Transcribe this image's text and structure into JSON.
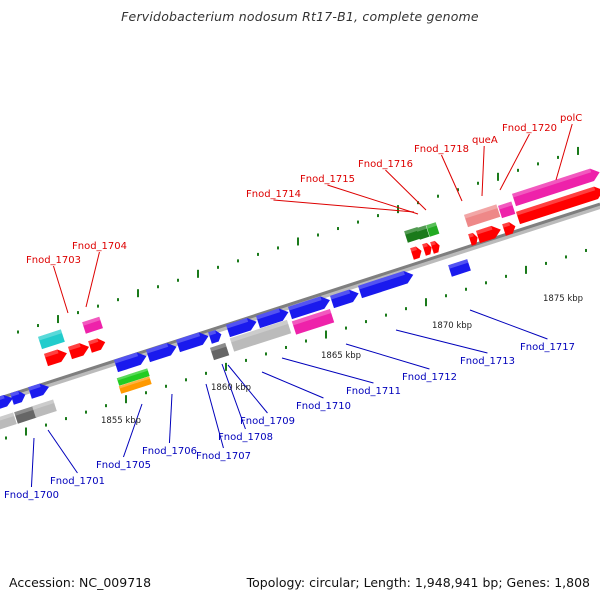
{
  "title": "Fervidobacterium nodosum Rt17-B1, complete genome",
  "footer": {
    "accession": "Accession: NC_009718",
    "summary": "Topology: circular; Length: 1,948,941 bp; Genes: 1,808"
  },
  "colors": {
    "backbone": "#8c8c8c",
    "upper_label": "#dd0000",
    "lower_label": "#0000bb",
    "tick": "#1a7a1a"
  },
  "kbp_labels": [
    "1855 kbp",
    "1860 kbp",
    "1865 kbp",
    "1870 kbp",
    "1875 kbp"
  ],
  "upper_labels": [
    "Fnod_1703",
    "Fnod_1704",
    "Fnod_1714",
    "Fnod_1715",
    "Fnod_1716",
    "Fnod_1718",
    "queA",
    "Fnod_1720",
    "polC"
  ],
  "lower_labels": [
    "Fnod_1700",
    "Fnod_1701",
    "Fnod_1705",
    "Fnod_1706",
    "Fnod_1707",
    "Fnod_1708",
    "Fnod_1709",
    "Fnod_1710",
    "Fnod_1711",
    "Fnod_1712",
    "Fnod_1713",
    "Fnod_1717"
  ]
}
